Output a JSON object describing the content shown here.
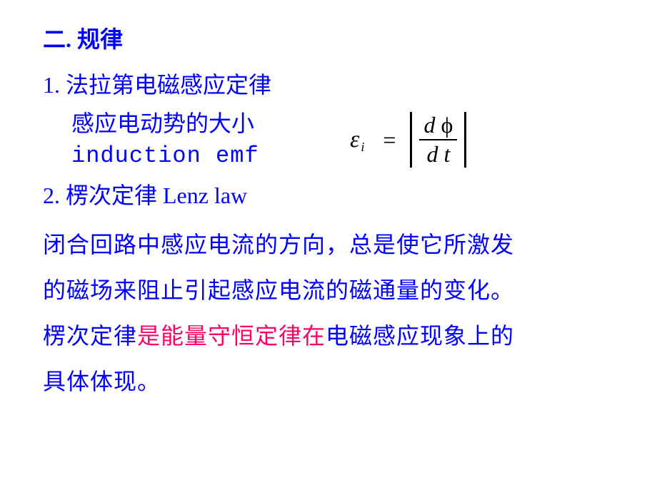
{
  "colors": {
    "text_main": "#0000ff",
    "highlight": "#ff0066",
    "formula": "#000000",
    "background": "#ffffff"
  },
  "typography": {
    "body_fontsize_pt": 24,
    "line_height": 2.0,
    "font_family_cjk": "SimSun",
    "font_family_mono": "Courier New",
    "font_family_math": "Times New Roman"
  },
  "heading": "二.  规律",
  "section1": {
    "title": "1.  法拉第电磁感应定律",
    "line1": "感应电动势的大小",
    "line2": "induction emf"
  },
  "formula": {
    "lhs_symbol": "ε",
    "lhs_subscript": "i",
    "equals": "=",
    "numerator_d": "d",
    "numerator_var": "ϕ",
    "denominator_d": "d",
    "denominator_var": "t",
    "absolute_value": true
  },
  "section2": {
    "title": "2.  楞次定律   Lenz law"
  },
  "paragraph": {
    "p1": "闭合回路中感应电流的方向，总是使它所激发",
    "p2": "的磁场来阻止引起感应电流的磁通量的变化。",
    "p3a": "楞次定律",
    "p3_hl": "是能量守恒定律在",
    "p3b": "电磁感应现象上的",
    "p4": "具体体现。"
  }
}
